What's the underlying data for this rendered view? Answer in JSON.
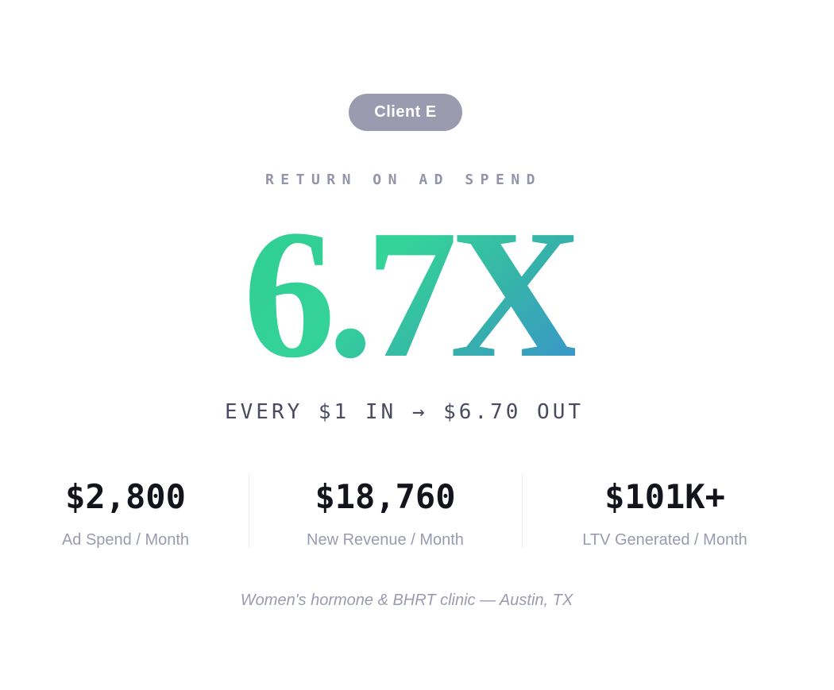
{
  "badge": "Client E",
  "eyebrow": "RETURN ON AD SPEND",
  "headline": "6.7X",
  "subline": "EVERY $1 IN → $6.70 OUT",
  "stats": [
    {
      "value": "$2,800",
      "label": "Ad Spend / Month"
    },
    {
      "value": "$18,760",
      "label": "New Revenue / Month"
    },
    {
      "value": "$101K+",
      "label": "LTV Generated / Month"
    }
  ],
  "footnote": "Women's hormone & BHRT clinic — Austin, TX",
  "colors": {
    "gradient_start": "#2ecc8f",
    "gradient_end": "#3a8fcf",
    "badge": "#9a9bae"
  }
}
